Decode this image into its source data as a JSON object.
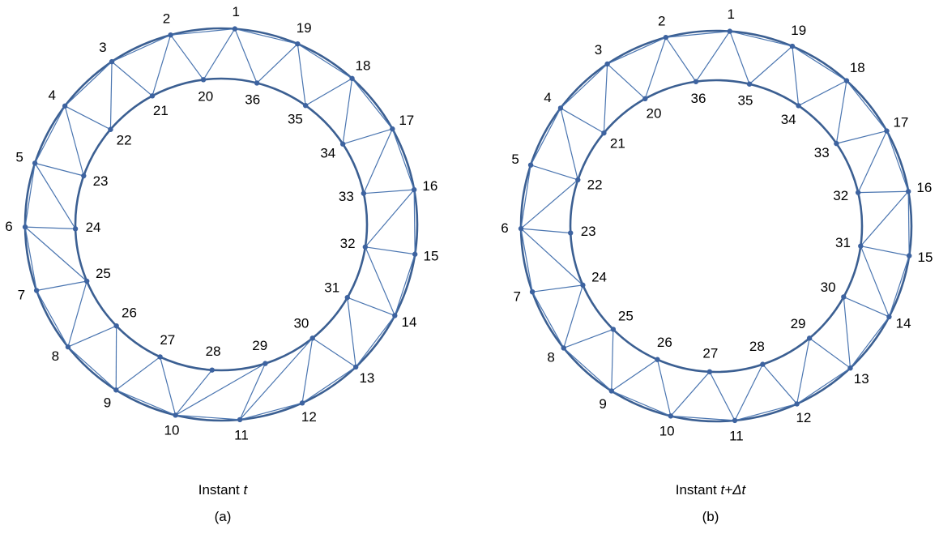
{
  "colors": {
    "ring": "#3b5f92",
    "edge": "#4a75b0",
    "node": "#3d63a0",
    "text": "#000000"
  },
  "panels": [
    {
      "id": "a",
      "caption_prefix": "Instant ",
      "caption_var": "t",
      "sublabel": "(a)",
      "outer_nodes": [
        "1",
        "2",
        "3",
        "4",
        "5",
        "6",
        "7",
        "8",
        "9",
        "10",
        "11",
        "12",
        "13",
        "14",
        "15",
        "16",
        "17",
        "18",
        "19"
      ],
      "inner_nodes": [
        "20",
        "21",
        "22",
        "23",
        "24",
        "25",
        "26",
        "27",
        "28",
        "29",
        "30",
        "31",
        "32",
        "33",
        "34",
        "35",
        "36"
      ],
      "edges": [
        [
          "1",
          "20"
        ],
        [
          "1",
          "36"
        ],
        [
          "2",
          "20"
        ],
        [
          "2",
          "21"
        ],
        [
          "3",
          "21"
        ],
        [
          "3",
          "22"
        ],
        [
          "4",
          "22"
        ],
        [
          "4",
          "23"
        ],
        [
          "5",
          "23"
        ],
        [
          "5",
          "24"
        ],
        [
          "6",
          "24"
        ],
        [
          "6",
          "25"
        ],
        [
          "7",
          "25"
        ],
        [
          "8",
          "25"
        ],
        [
          "8",
          "26"
        ],
        [
          "9",
          "26"
        ],
        [
          "9",
          "27"
        ],
        [
          "10",
          "27"
        ],
        [
          "10",
          "28"
        ],
        [
          "10",
          "29"
        ],
        [
          "11",
          "29"
        ],
        [
          "11",
          "30"
        ],
        [
          "12",
          "30"
        ],
        [
          "13",
          "30"
        ],
        [
          "13",
          "31"
        ],
        [
          "14",
          "31"
        ],
        [
          "15",
          "32"
        ],
        [
          "14",
          "32"
        ],
        [
          "16",
          "32"
        ],
        [
          "16",
          "33"
        ],
        [
          "17",
          "33"
        ],
        [
          "17",
          "34"
        ],
        [
          "18",
          "34"
        ],
        [
          "18",
          "35"
        ],
        [
          "19",
          "35"
        ],
        [
          "19",
          "36"
        ]
      ]
    },
    {
      "id": "b",
      "caption_prefix": "Instant ",
      "caption_var": "t+Δt",
      "sublabel": "(b)",
      "outer_nodes": [
        "1",
        "2",
        "3",
        "4",
        "5",
        "6",
        "7",
        "8",
        "9",
        "10",
        "11",
        "12",
        "13",
        "14",
        "15",
        "16",
        "17",
        "18",
        "19"
      ],
      "inner_nodes": [
        "20",
        "21",
        "22",
        "23",
        "24",
        "25",
        "26",
        "27",
        "28",
        "29",
        "30",
        "31",
        "32",
        "33",
        "34",
        "35",
        "36"
      ],
      "edges": [
        [
          "1",
          "36"
        ],
        [
          "1",
          "35"
        ],
        [
          "2",
          "36"
        ],
        [
          "2",
          "20"
        ],
        [
          "3",
          "20"
        ],
        [
          "3",
          "21"
        ],
        [
          "4",
          "21"
        ],
        [
          "4",
          "22"
        ],
        [
          "5",
          "22"
        ],
        [
          "6",
          "22"
        ],
        [
          "6",
          "23"
        ],
        [
          "6",
          "24"
        ],
        [
          "7",
          "24"
        ],
        [
          "8",
          "24"
        ],
        [
          "8",
          "25"
        ],
        [
          "9",
          "25"
        ],
        [
          "9",
          "26"
        ],
        [
          "10",
          "26"
        ],
        [
          "10",
          "27"
        ],
        [
          "11",
          "27"
        ],
        [
          "11",
          "28"
        ],
        [
          "12",
          "28"
        ],
        [
          "12",
          "29"
        ],
        [
          "13",
          "29"
        ],
        [
          "13",
          "30"
        ],
        [
          "14",
          "30"
        ],
        [
          "14",
          "31"
        ],
        [
          "15",
          "31"
        ],
        [
          "16",
          "31"
        ],
        [
          "16",
          "32"
        ],
        [
          "17",
          "32"
        ],
        [
          "17",
          "33"
        ],
        [
          "18",
          "33"
        ],
        [
          "18",
          "34"
        ],
        [
          "19",
          "34"
        ],
        [
          "19",
          "35"
        ]
      ]
    }
  ]
}
